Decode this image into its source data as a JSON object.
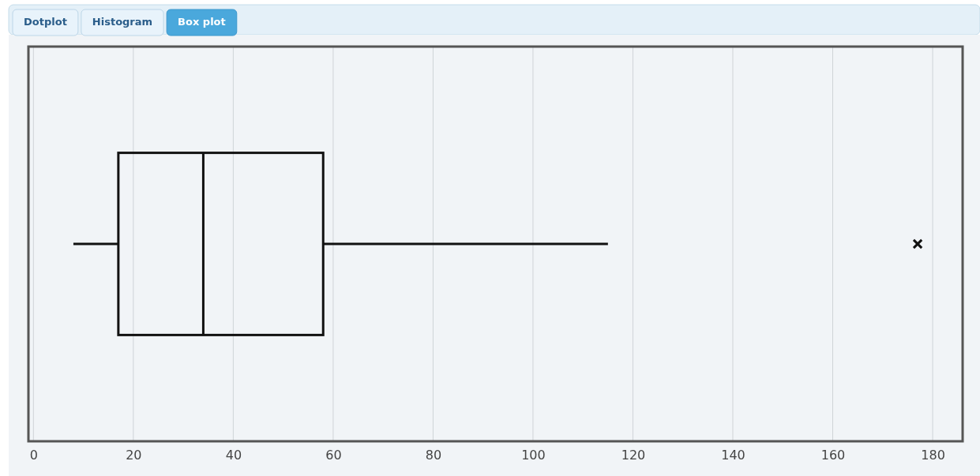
{
  "chart_data": {
    "type": "box",
    "orientation": "horizontal",
    "categories": [
      null
    ],
    "boxes": [
      {
        "low": 8,
        "q1": 17,
        "median": 34,
        "q3": 58,
        "high": 115,
        "outliers": [
          177
        ]
      }
    ],
    "xlim": [
      -1,
      186
    ],
    "xticks": [
      0,
      20,
      40,
      60,
      80,
      100,
      120,
      140,
      160,
      180
    ],
    "grid": "x",
    "tick_labels": "x",
    "marker": "cross",
    "annotations": [
      "Dotplot",
      "Histogram",
      "Box plot"
    ]
  }
}
